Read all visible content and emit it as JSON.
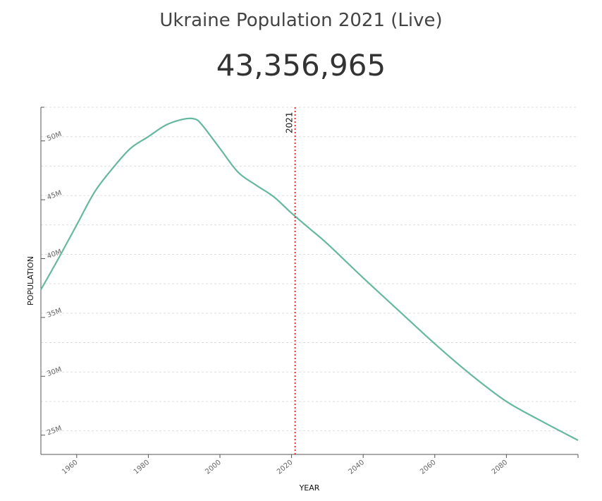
{
  "header": {
    "title": "Ukraine Population 2021 (Live)",
    "live_population": "43,356,965"
  },
  "colors": {
    "line": "#66b8a0",
    "marker": "#e03030",
    "grid": "#dddddd",
    "axis": "#555555"
  },
  "chart_data": {
    "type": "line",
    "title": "Ukraine Population 2021 (Live)",
    "xlabel": "YEAR",
    "ylabel": "POPULATION",
    "xlim": [
      1950,
      2100
    ],
    "ylim": [
      23000000,
      52500000
    ],
    "x_ticks": [
      1960,
      1980,
      2000,
      2020,
      2040,
      2060,
      2080
    ],
    "x_tick_labels": [
      "1960",
      "1980",
      "2000",
      "2020",
      "2040",
      "2060",
      "2080"
    ],
    "y_ticks": [
      25000000,
      30000000,
      35000000,
      40000000,
      45000000,
      50000000
    ],
    "y_tick_labels": [
      "25M",
      "30M",
      "35M",
      "40M",
      "45M",
      "50M"
    ],
    "grid": true,
    "marker": {
      "year": 2021,
      "label": "2021"
    },
    "series": [
      {
        "x": [
          1950,
          1955,
          1960,
          1965,
          1970,
          1975,
          1980,
          1985,
          1990,
          1993,
          1995,
          2000,
          2005,
          2010,
          2015,
          2020,
          2025,
          2030,
          2040,
          2050,
          2060,
          2070,
          2080,
          2090,
          2100
        ],
        "values": [
          37000000,
          39700000,
          42500000,
          45300000,
          47300000,
          49000000,
          50000000,
          51000000,
          51500000,
          51500000,
          51000000,
          49000000,
          47000000,
          45900000,
          44900000,
          43500000,
          42200000,
          40900000,
          38000000,
          35200000,
          32400000,
          29800000,
          27500000,
          25800000,
          24200000
        ]
      }
    ]
  }
}
